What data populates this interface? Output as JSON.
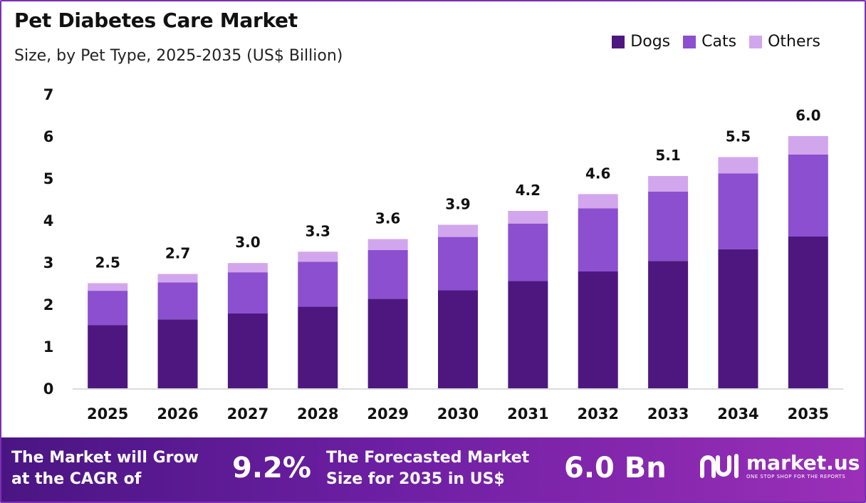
{
  "chart_data": {
    "type": "bar",
    "stacked": true,
    "title": "Pet Diabetes Care Market",
    "subtitle": "Size, by Pet Type, 2025-2035 (US$ Billion)",
    "categories": [
      "2025",
      "2026",
      "2027",
      "2028",
      "2029",
      "2030",
      "2031",
      "2032",
      "2033",
      "2034",
      "2035"
    ],
    "series": [
      {
        "name": "Dogs",
        "color": "#4e1780",
        "values": [
          1.5,
          1.64,
          1.78,
          1.94,
          2.13,
          2.33,
          2.55,
          2.78,
          3.03,
          3.31,
          3.61
        ]
      },
      {
        "name": "Cats",
        "color": "#8b4fcf",
        "values": [
          0.82,
          0.88,
          0.98,
          1.07,
          1.16,
          1.27,
          1.37,
          1.5,
          1.65,
          1.8,
          1.95
        ]
      },
      {
        "name": "Others",
        "color": "#d2a6ec",
        "values": [
          0.18,
          0.2,
          0.22,
          0.24,
          0.26,
          0.29,
          0.3,
          0.34,
          0.37,
          0.39,
          0.44
        ]
      }
    ],
    "totals": [
      "2.5",
      "2.7",
      "3.0",
      "3.3",
      "3.6",
      "3.9",
      "4.2",
      "4.6",
      "5.1",
      "5.5",
      "6.0"
    ],
    "y_ticks": [
      "0",
      "1",
      "2",
      "3",
      "4",
      "5",
      "6",
      "7"
    ],
    "ylim": [
      0,
      7
    ],
    "grid": false,
    "legend_position": "top-right"
  },
  "banner": {
    "cagr_text": "The Market will Grow\nat the CAGR of",
    "cagr_value": "9.2%",
    "forecast_text": "The Forecasted Market\nSize for 2035 in US$",
    "forecast_value": "6.0 Bn"
  },
  "logo": {
    "name": "market.us",
    "tagline": "ONE STOP SHOP FOR THE REPORTS"
  }
}
